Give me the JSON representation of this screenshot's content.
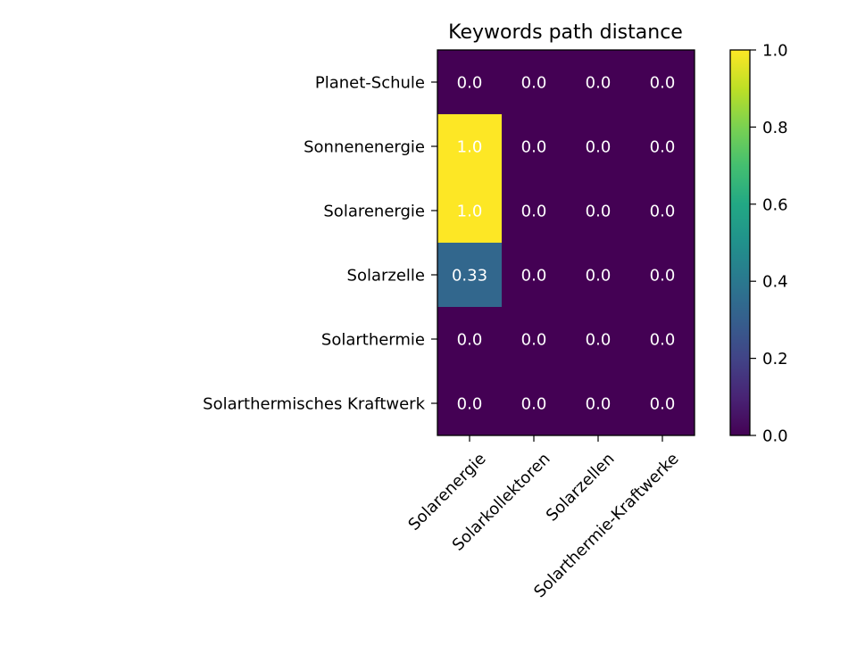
{
  "chart_data": {
    "type": "heatmap",
    "title": "Keywords path distance",
    "rows": [
      "Planet-Schule",
      "Sonnenenergie",
      "Solarenergie",
      "Solarzelle",
      "Solarthermie",
      "Solarthermisches Kraftwerk"
    ],
    "columns": [
      "Solarenergie",
      "Solarkollektoren",
      "Solarzellen",
      "Solarthermie-Kraftwerke"
    ],
    "values": [
      [
        0.0,
        0.0,
        0.0,
        0.0
      ],
      [
        1.0,
        0.0,
        0.0,
        0.0
      ],
      [
        1.0,
        0.0,
        0.0,
        0.0
      ],
      [
        0.33,
        0.0,
        0.0,
        0.0
      ],
      [
        0.0,
        0.0,
        0.0,
        0.0
      ],
      [
        0.0,
        0.0,
        0.0,
        0.0
      ]
    ],
    "cell_labels": [
      [
        "0.0",
        "0.0",
        "0.0",
        "0.0"
      ],
      [
        "1.0",
        "0.0",
        "0.0",
        "0.0"
      ],
      [
        "1.0",
        "0.0",
        "0.0",
        "0.0"
      ],
      [
        "0.33",
        "0.0",
        "0.0",
        "0.0"
      ],
      [
        "0.0",
        "0.0",
        "0.0",
        "0.0"
      ],
      [
        "0.0",
        "0.0",
        "0.0",
        "0.0"
      ]
    ],
    "colormap": "viridis",
    "vmin": 0.0,
    "vmax": 1.0,
    "colorbar": {
      "ticks": [
        0.0,
        0.2,
        0.4,
        0.6,
        0.8,
        1.0
      ],
      "tick_labels": [
        "0.0",
        "0.2",
        "0.4",
        "0.6",
        "0.8",
        "1.0"
      ]
    },
    "x_tick_rotation_deg": 45,
    "grid": false
  },
  "colors": {
    "cell_label_text": "#ffffff",
    "axis": "#000000",
    "background": "#ffffff"
  }
}
